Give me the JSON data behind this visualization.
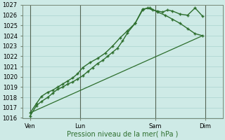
{
  "bg_color": "#ceeae6",
  "grid_color": "#b0d8d2",
  "line_color": "#2d6e2d",
  "xlabel": "Pression niveau de la mer( hPa )",
  "xlabel_color": "#2d6e2d",
  "ylim": [
    1016,
    1027
  ],
  "yticks": [
    1016,
    1017,
    1018,
    1019,
    1020,
    1021,
    1022,
    1023,
    1024,
    1025,
    1026,
    1027
  ],
  "xlim": [
    0,
    8
  ],
  "xtick_positions": [
    0.3,
    2.3,
    5.3,
    7.3
  ],
  "xtick_labels": [
    "Ven",
    "Lun",
    "Sam",
    "Dim"
  ],
  "vlines": [
    0.3,
    2.3,
    5.3,
    7.3
  ],
  "line1_x": [
    0.3,
    0.55,
    0.75,
    1.0,
    1.2,
    1.4,
    1.6,
    1.8,
    2.0,
    2.2,
    2.4,
    2.6,
    2.8,
    3.0,
    3.2,
    3.4,
    3.6,
    3.8,
    4.0,
    4.2,
    4.5,
    4.8,
    5.0,
    5.2,
    5.4,
    5.6,
    5.8,
    6.0,
    6.3,
    6.6,
    6.9,
    7.2
  ],
  "line1_y": [
    1016.2,
    1017.2,
    1017.6,
    1018.0,
    1018.4,
    1018.8,
    1019.0,
    1019.3,
    1019.5,
    1019.8,
    1020.1,
    1020.5,
    1020.9,
    1021.3,
    1021.6,
    1022.0,
    1022.4,
    1022.8,
    1023.5,
    1024.3,
    1025.2,
    1026.5,
    1026.7,
    1026.5,
    1026.4,
    1026.3,
    1026.5,
    1026.4,
    1026.1,
    1026.0,
    1026.7,
    1025.9
  ],
  "line2_x": [
    0.3,
    0.55,
    0.75,
    1.0,
    1.2,
    1.4,
    1.6,
    1.8,
    2.0,
    2.2,
    2.4,
    2.7,
    3.0,
    3.3,
    3.6,
    3.9,
    4.2,
    4.5,
    4.8,
    5.1,
    5.4,
    5.7,
    6.0,
    6.3,
    6.6,
    6.9,
    7.2
  ],
  "line2_y": [
    1016.5,
    1017.4,
    1018.1,
    1018.5,
    1018.7,
    1019.0,
    1019.3,
    1019.6,
    1019.9,
    1020.3,
    1020.9,
    1021.4,
    1021.8,
    1022.3,
    1023.0,
    1023.8,
    1024.5,
    1025.2,
    1026.6,
    1026.7,
    1026.3,
    1026.0,
    1025.6,
    1025.2,
    1024.7,
    1024.2,
    1024.0
  ],
  "line3_x": [
    0.3,
    7.2
  ],
  "line3_y": [
    1016.5,
    1024.0
  ]
}
